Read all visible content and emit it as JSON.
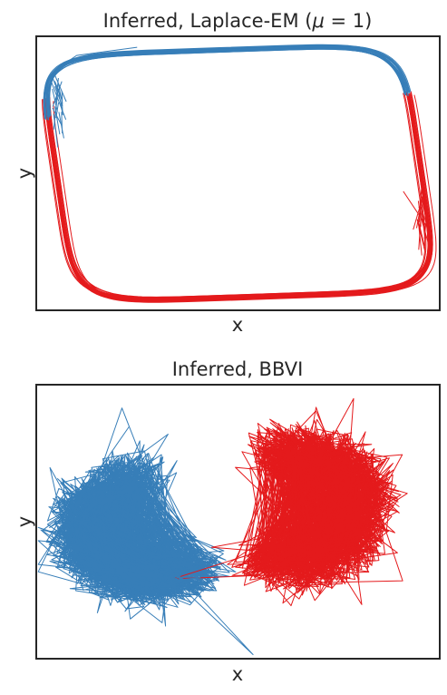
{
  "chart_data": [
    {
      "type": "line",
      "title": "Inferred, Laplace-EM (μ = 1)",
      "title_parts": [
        "Inferred, Laplace-EM (",
        "μ",
        " = 1)"
      ],
      "xlabel": "x",
      "ylabel": "y",
      "ticks": "none",
      "grid": false,
      "legend": "none",
      "series": [
        {
          "color": "#377eb8",
          "shape": "closed-loop",
          "segment": "upper-and-left",
          "points": [
            [
              -0.6,
              0.92
            ],
            [
              -0.75,
              0.93
            ],
            [
              -0.88,
              0.88
            ],
            [
              -0.95,
              0.72
            ],
            [
              -0.93,
              0.5
            ],
            [
              -0.9,
              0.35
            ],
            [
              -0.6,
              0.85
            ],
            [
              0.0,
              0.88
            ],
            [
              0.4,
              0.95
            ],
            [
              0.62,
              0.85
            ],
            [
              0.8,
              0.4
            ],
            [
              0.93,
              -0.18
            ]
          ]
        },
        {
          "color": "#e41a1c",
          "shape": "closed-loop",
          "segment": "lower-and-right",
          "points": [
            [
              -0.88,
              0.55
            ],
            [
              -0.8,
              0.1
            ],
            [
              -0.65,
              -0.55
            ],
            [
              -0.45,
              -0.93
            ],
            [
              -0.1,
              -0.85
            ],
            [
              0.4,
              -0.85
            ],
            [
              0.75,
              -0.7
            ],
            [
              0.92,
              -0.45
            ],
            [
              0.93,
              -0.18
            ]
          ]
        }
      ],
      "colors": {
        "blue": "#377eb8",
        "red": "#e41a1c"
      }
    },
    {
      "type": "line",
      "title": "Inferred, BBVI",
      "xlabel": "x",
      "ylabel": "y",
      "ticks": "none",
      "grid": false,
      "legend": "none",
      "series": [
        {
          "color": "#377eb8",
          "shape": "noisy-cloud",
          "region": "left-lower crescent",
          "center": [
            -0.45,
            -0.05
          ],
          "spread": [
            0.42,
            0.5
          ]
        },
        {
          "color": "#e41a1c",
          "shape": "noisy-cloud",
          "region": "right-upper crescent",
          "center": [
            0.3,
            0.1
          ],
          "spread": [
            0.42,
            0.55
          ]
        }
      ],
      "colors": {
        "blue": "#377eb8",
        "red": "#e41a1c"
      }
    }
  ]
}
